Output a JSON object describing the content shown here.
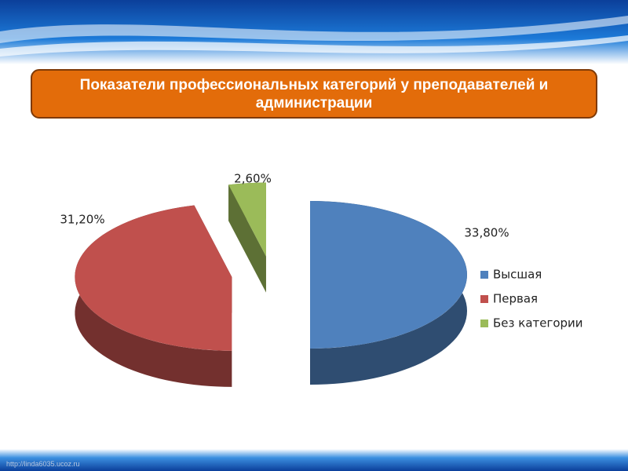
{
  "chart_data": {
    "type": "pie",
    "title": "Показатели профессиональных категорий у преподавателей и администрации",
    "categories": [
      "Высшая",
      "Первая",
      "Без категории"
    ],
    "values": [
      33.8,
      31.2,
      2.6
    ],
    "value_labels": [
      "33,80%",
      "31,20%",
      "2,60%"
    ],
    "colors": [
      "#4f81bd",
      "#c0504d",
      "#9bbb59"
    ],
    "legend": "right"
  },
  "footer": "http://linda6035.ucoz.ru"
}
